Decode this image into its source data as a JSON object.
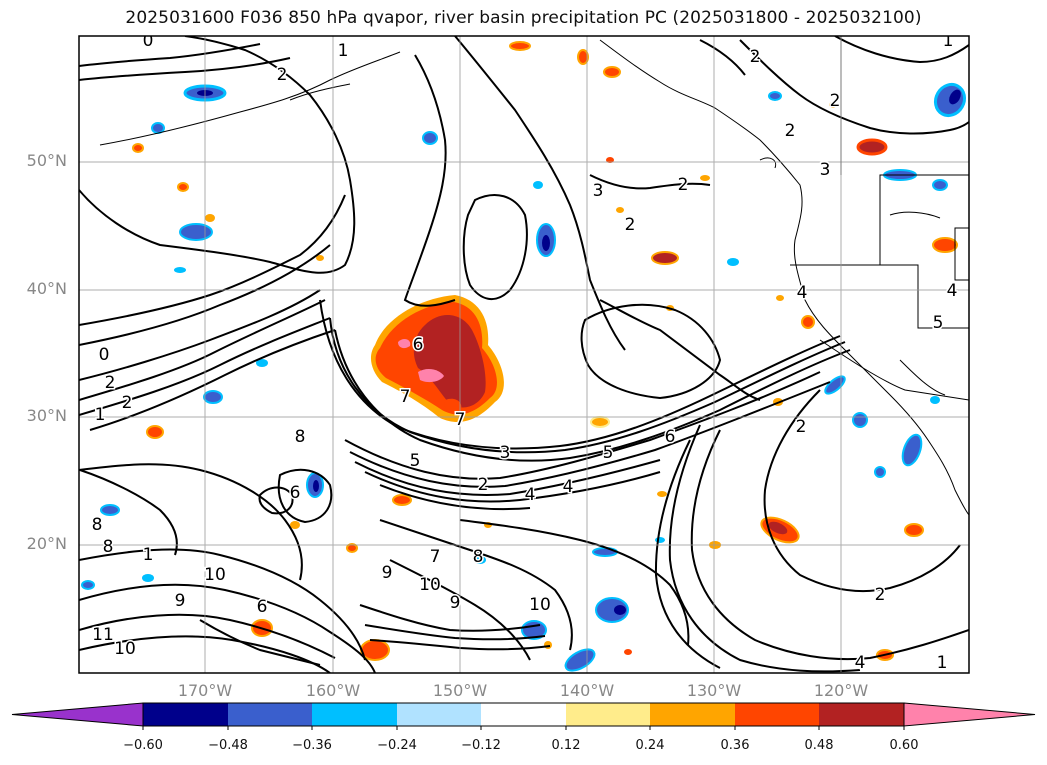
{
  "title": "2025031600 F036 850 hPa qvapor, river basin precipitation PC (2025031800 - 2025032100)",
  "lat_labels": [
    "50°N",
    "40°N",
    "30°N",
    "20°N"
  ],
  "lon_labels": [
    "170°W",
    "160°W",
    "150°W",
    "140°W",
    "130°W",
    "120°W"
  ],
  "colorbar": {
    "ticks": [
      "−0.60",
      "−0.48",
      "−0.36",
      "−0.24",
      "−0.12",
      "0.12",
      "0.24",
      "0.36",
      "0.48",
      "0.60"
    ],
    "colors": [
      "#9932cc",
      "#00008b",
      "#3a5fcd",
      "#00bfff",
      "#b0e2ff",
      "#ffffff",
      "#ffec8b",
      "#ffa500",
      "#ff4500",
      "#b22222",
      "#ff82ab",
      "#ff82ab"
    ]
  },
  "contour_labels": [
    "0",
    "1",
    "2",
    "2",
    "1",
    "2",
    "2",
    "3",
    "2",
    "3",
    "2",
    "0",
    "2",
    "1",
    "2",
    "8",
    "6",
    "6",
    "8",
    "8",
    "1",
    "10",
    "9",
    "6",
    "7",
    "8",
    "9",
    "10",
    "9",
    "10",
    "11",
    "10",
    "7",
    "5",
    "3",
    "2",
    "4",
    "6",
    "5",
    "4",
    "6",
    "7",
    "2",
    "2",
    "4",
    "4",
    "5",
    "4",
    "1"
  ]
}
